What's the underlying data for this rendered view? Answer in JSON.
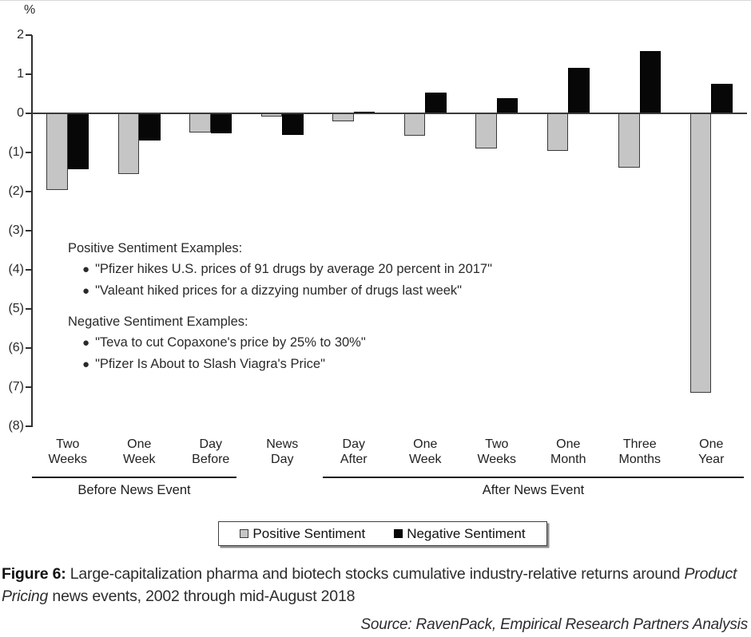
{
  "chart_data": {
    "type": "bar",
    "title": "",
    "ylabel_unit": "%",
    "ylim": [
      -8,
      2
    ],
    "grid": false,
    "legend_position": "bottom-center",
    "yticks": [
      {
        "label": "2",
        "value": 2
      },
      {
        "label": "1",
        "value": 1
      },
      {
        "label": "0",
        "value": 0
      },
      {
        "label": "(1)",
        "value": -1
      },
      {
        "label": "(2)",
        "value": -2
      },
      {
        "label": "(3)",
        "value": -3
      },
      {
        "label": "(4)",
        "value": -4
      },
      {
        "label": "(5)",
        "value": -5
      },
      {
        "label": "(6)",
        "value": -6
      },
      {
        "label": "(7)",
        "value": -7
      },
      {
        "label": "(8)",
        "value": -8
      }
    ],
    "categories": [
      "Two Weeks",
      "One Week",
      "Day Before",
      "News Day",
      "Day After",
      "One Week",
      "Two Weeks",
      "One Month",
      "Three Months",
      "One Year"
    ],
    "category_lines": [
      [
        "Two",
        "Weeks"
      ],
      [
        "One",
        "Week"
      ],
      [
        "Day",
        "Before"
      ],
      [
        "News",
        "Day"
      ],
      [
        "Day",
        "After"
      ],
      [
        "One",
        "Week"
      ],
      [
        "Two",
        "Weeks"
      ],
      [
        "One",
        "Month"
      ],
      [
        "Three",
        "Months"
      ],
      [
        "One",
        "Year"
      ]
    ],
    "series": [
      {
        "name": "Positive Sentiment",
        "color": "#c5c5c5",
        "values": [
          -1.95,
          -1.55,
          -0.48,
          -0.08,
          -0.2,
          -0.57,
          -0.9,
          -0.96,
          -1.38,
          -7.15
        ]
      },
      {
        "name": "Negative Sentiment",
        "color": "#070707",
        "values": [
          -1.43,
          -0.7,
          -0.52,
          -0.55,
          0.04,
          0.53,
          0.39,
          1.17,
          1.59,
          0.75
        ]
      }
    ],
    "group_spans": [
      {
        "label": "Before News Event",
        "from": 0,
        "to": 2
      },
      {
        "label": "After News Event",
        "from": 4,
        "to": 9
      }
    ]
  },
  "annotations": {
    "positive_header": "Positive Sentiment Examples:",
    "positive_items": [
      "\"Pfizer hikes U.S. prices of 91 drugs by average 20 percent in 2017\"",
      "\"Valeant hiked prices for a dizzying number of drugs last week\""
    ],
    "negative_header": "Negative Sentiment Examples:",
    "negative_items": [
      "\"Teva to cut Copaxone's price by 25% to 30%\"",
      "\"Pfizer Is About to Slash Viagra's Price\""
    ]
  },
  "legend": {
    "items": [
      {
        "label": "Positive Sentiment",
        "color": "#c5c5c5"
      },
      {
        "label": "Negative Sentiment",
        "color": "#070707"
      }
    ]
  },
  "caption": {
    "figure_label": "Figure 6:",
    "text_before_italic": " Large-capitalization pharma and biotech stocks cumulative industry-relative returns around ",
    "italic_text": "Product Pricing",
    "text_after_italic": " news events, 2002 through mid-August 2018"
  },
  "source": "Source: RavenPack, Empirical Research Partners Analysis"
}
